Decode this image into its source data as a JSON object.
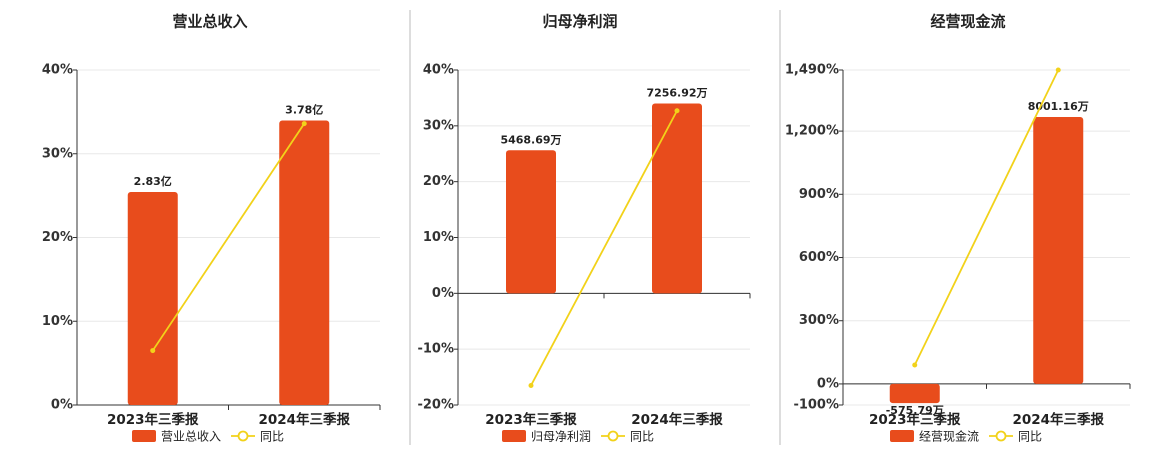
{
  "chart_data": [
    {
      "type": "bar",
      "title": "营业总收入",
      "categories": [
        "2023年三季报",
        "2024年三季报"
      ],
      "series": [
        {
          "name": "营业总收入",
          "color": "#e84c1c",
          "values": [
            2.83,
            3.78
          ],
          "value_labels": [
            "2.83亿",
            "3.78亿"
          ],
          "axis": "y2"
        },
        {
          "name": "同比",
          "type": "line",
          "color": "#f2d21a",
          "values": [
            6.5,
            33.6
          ]
        }
      ],
      "ylim": [
        0,
        40
      ],
      "yticks": [
        {
          "value": 0,
          "label": "0%"
        },
        {
          "value": 10,
          "label": "10%"
        },
        {
          "value": 20,
          "label": "20%"
        },
        {
          "value": 30,
          "label": "30%"
        },
        {
          "value": 40,
          "label": "40%"
        }
      ],
      "y2lim": [
        0,
        4.45
      ],
      "grid": true
    },
    {
      "type": "bar",
      "title": "归母净利润",
      "categories": [
        "2023年三季报",
        "2024年三季报"
      ],
      "series": [
        {
          "name": "归母净利润",
          "color": "#e84c1c",
          "values": [
            5468.69,
            7256.92
          ],
          "value_labels": [
            "5468.69万",
            "7256.92万"
          ],
          "axis": "y2"
        },
        {
          "name": "同比",
          "type": "line",
          "color": "#f2d21a",
          "values": [
            -16.5,
            32.7
          ]
        }
      ],
      "ylim": [
        -20,
        40
      ],
      "yticks": [
        {
          "value": -20,
          "label": "-20%"
        },
        {
          "value": -10,
          "label": "-10%"
        },
        {
          "value": 0,
          "label": "0%"
        },
        {
          "value": 10,
          "label": "10%"
        },
        {
          "value": 20,
          "label": "20%"
        },
        {
          "value": 30,
          "label": "30%"
        },
        {
          "value": 40,
          "label": "40%"
        }
      ],
      "y2lim": [
        -4269,
        8537
      ],
      "grid": true
    },
    {
      "type": "bar",
      "title": "经营现金流",
      "categories": [
        "2023年三季报",
        "2024年三季报"
      ],
      "series": [
        {
          "name": "经营现金流",
          "color": "#e84c1c",
          "values": [
            -575.79,
            8001.16
          ],
          "value_labels": [
            "-575.79万",
            "8001.16万"
          ],
          "axis": "y2"
        },
        {
          "name": "同比",
          "type": "line",
          "color": "#f2d21a",
          "values": [
            90,
            1490
          ]
        }
      ],
      "ylim": [
        -100,
        1490
      ],
      "yticks": [
        {
          "value": -100,
          "label": "-100%"
        },
        {
          "value": 0,
          "label": "0%"
        },
        {
          "value": 300,
          "label": "300%"
        },
        {
          "value": 600,
          "label": "600%"
        },
        {
          "value": 900,
          "label": "900%"
        },
        {
          "value": 1200,
          "label": "1,200%"
        },
        {
          "value": 1490,
          "label": "1,490%"
        }
      ],
      "y2lim": [
        -631.5,
        9409
      ],
      "grid": true
    }
  ]
}
